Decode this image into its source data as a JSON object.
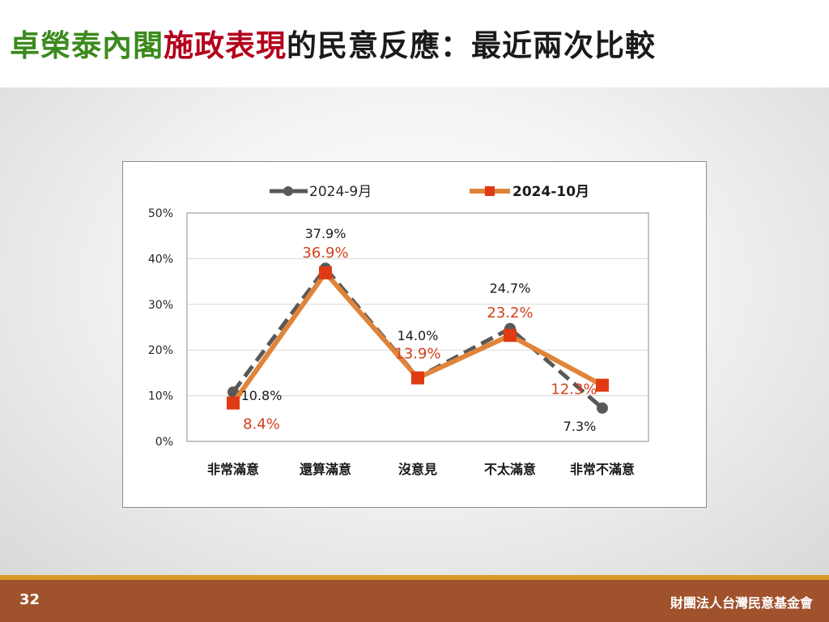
{
  "slide": {
    "title_part1": "卓榮泰內閣",
    "title_part2": "施政表現",
    "title_part3": "的民意反應：最近兩次比較",
    "page_number": "32",
    "organization": "財團法人台灣民意基金會"
  },
  "colors": {
    "title_green": "#3c8a1e",
    "title_red": "#b3001b",
    "title_dark": "#1a1a1a",
    "series_sep": "#595959",
    "series_oct": "#e0843a",
    "marker_oct": "#e03a12",
    "label_oct": "#d4411a",
    "footer": "#a0522d"
  },
  "chart_data": {
    "type": "line",
    "categories": [
      "非常滿意",
      "還算滿意",
      "沒意見",
      "不太滿意",
      "非常不滿意"
    ],
    "ylim": [
      0,
      50
    ],
    "yticks": [
      "0%",
      "10%",
      "20%",
      "30%",
      "40%",
      "50%"
    ],
    "grid": true,
    "legend_position": "top",
    "series": [
      {
        "name": "2024-9月",
        "values": [
          10.8,
          37.9,
          14.0,
          24.7,
          7.3
        ],
        "labels": [
          "10.8%",
          "37.9%",
          "14.0%",
          "24.7%",
          "7.3%"
        ],
        "style": "dashed",
        "marker": "circle"
      },
      {
        "name": "2024-10月",
        "values": [
          8.4,
          36.9,
          13.9,
          23.2,
          12.3
        ],
        "labels": [
          "8.4%",
          "36.9%",
          "13.9%",
          "23.2%",
          "12.3%"
        ],
        "style": "solid",
        "marker": "square"
      }
    ]
  }
}
